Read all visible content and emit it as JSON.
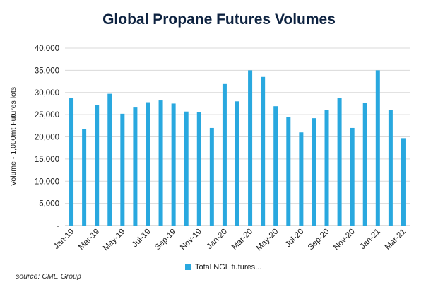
{
  "chart_data": {
    "type": "bar",
    "title": "Global Propane Futures Volumes",
    "ylabel": "Volume - 1,000mt Futures lots",
    "xlabel": "",
    "ylim": [
      0,
      40000
    ],
    "yticks": [
      0,
      5000,
      10000,
      15000,
      20000,
      25000,
      30000,
      35000,
      40000
    ],
    "ytick_labels": [
      "-",
      "5,000",
      "10,000",
      "15,000",
      "20,000",
      "25,000",
      "30,000",
      "35,000",
      "40,000"
    ],
    "grid": "horizontal",
    "legend_position": "bottom",
    "categories": [
      "Jan-19",
      "Feb-19",
      "Mar-19",
      "Apr-19",
      "May-19",
      "Jun-19",
      "Jul-19",
      "Aug-19",
      "Sep-19",
      "Oct-19",
      "Nov-19",
      "Dec-19",
      "Jan-20",
      "Feb-20",
      "Mar-20",
      "Apr-20",
      "May-20",
      "Jun-20",
      "Jul-20",
      "Aug-20",
      "Sep-20",
      "Oct-20",
      "Nov-20",
      "Dec-20",
      "Jan-21",
      "Feb-21",
      "Mar-21"
    ],
    "category_labels_shown": [
      "Jan-19",
      "",
      "Mar-19",
      "",
      "May-19",
      "",
      "Jul-19",
      "",
      "Sep-19",
      "",
      "Nov-19",
      "",
      "Jan-20",
      "",
      "Mar-20",
      "",
      "May-20",
      "",
      "Jul-20",
      "",
      "Sep-20",
      "",
      "Nov-20",
      "",
      "Jan-21",
      "",
      "Mar-21"
    ],
    "series": [
      {
        "name": "Total NGL futures...",
        "color": "#29a8df",
        "values": [
          28800,
          21700,
          27100,
          29700,
          25200,
          26600,
          27800,
          28200,
          27500,
          25700,
          25500,
          22000,
          31900,
          28000,
          35000,
          33500,
          26900,
          24400,
          21000,
          24200,
          26100,
          28800,
          22000,
          27600,
          35000,
          26100,
          19700
        ]
      }
    ]
  },
  "source": "source: CME Group"
}
